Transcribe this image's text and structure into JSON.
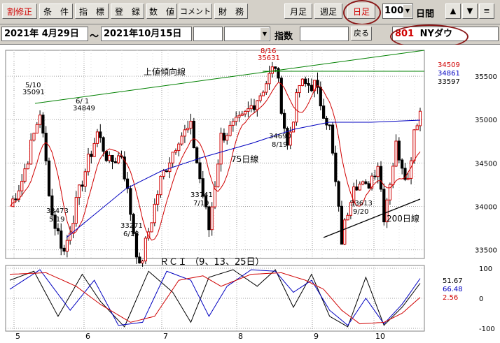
{
  "toolbar": {
    "btn_split": "割修正",
    "btn_cond": "条　件",
    "btn_index": "指　標",
    "btn_register": "登　録",
    "btn_value": "数　値",
    "btn_comment": "コメント",
    "btn_finance": "財　務",
    "btn_monthly": "月足",
    "btn_weekly": "週足",
    "btn_daily": "日足",
    "period_value": "100",
    "period_unit": "日間",
    "up_icon": "▲",
    "down_icon": "▼",
    "menu_icon": "≡"
  },
  "rangebar": {
    "start_date": "2021年  4月29日",
    "tilde": "～",
    "end_date": "2021年10月15日",
    "index_label": "指数",
    "back_button": "戻る",
    "code": "801",
    "name": "NYダウ"
  },
  "chart_data": [
    {
      "type": "candlestick",
      "title": "",
      "x_ticks": [
        "5",
        "6",
        "7",
        "8",
        "9",
        "10"
      ],
      "ylim": [
        33400,
        35750
      ],
      "y_ticks": [
        35500,
        35000,
        34500,
        34000,
        33500
      ],
      "right_values": [
        {
          "value": "34509",
          "color": "#d00000"
        },
        {
          "value": "34861",
          "color": "#0000c0"
        },
        {
          "value": "33597",
          "color": "#000000"
        }
      ],
      "annotations": [
        {
          "price": "35091",
          "date": "5/10"
        },
        {
          "price": "34849",
          "date": "6/ 1"
        },
        {
          "price": "33473",
          "date": "5/19"
        },
        {
          "price": "33271",
          "date": "6/18"
        },
        {
          "price": "33741",
          "date": "7/19"
        },
        {
          "price": "35631",
          "date": "8/16"
        },
        {
          "price": "34690",
          "date": "8/19"
        },
        {
          "price": "33613",
          "date": "9/20"
        }
      ],
      "line_labels": {
        "upper_trend": "上値傾向線",
        "ma75": "75日線",
        "ma200": "200日線"
      },
      "series_colors": {
        "ma25": "#d00000",
        "ma75": "#0000c0",
        "ma200": "#000000",
        "trend": "#008000",
        "candle": "#d00000"
      },
      "grid": true
    },
    {
      "type": "line",
      "title": "ＲＣＩ （9、13、25日）",
      "ylim": [
        -100,
        100
      ],
      "y_ticks": [
        "100",
        "0",
        "-100"
      ],
      "series": [
        {
          "name": "51.67",
          "color": "#000000"
        },
        {
          "name": "66.48",
          "color": "#0000c0"
        },
        {
          "name": "2.56",
          "color": "#d00000"
        }
      ],
      "grid": true
    }
  ]
}
